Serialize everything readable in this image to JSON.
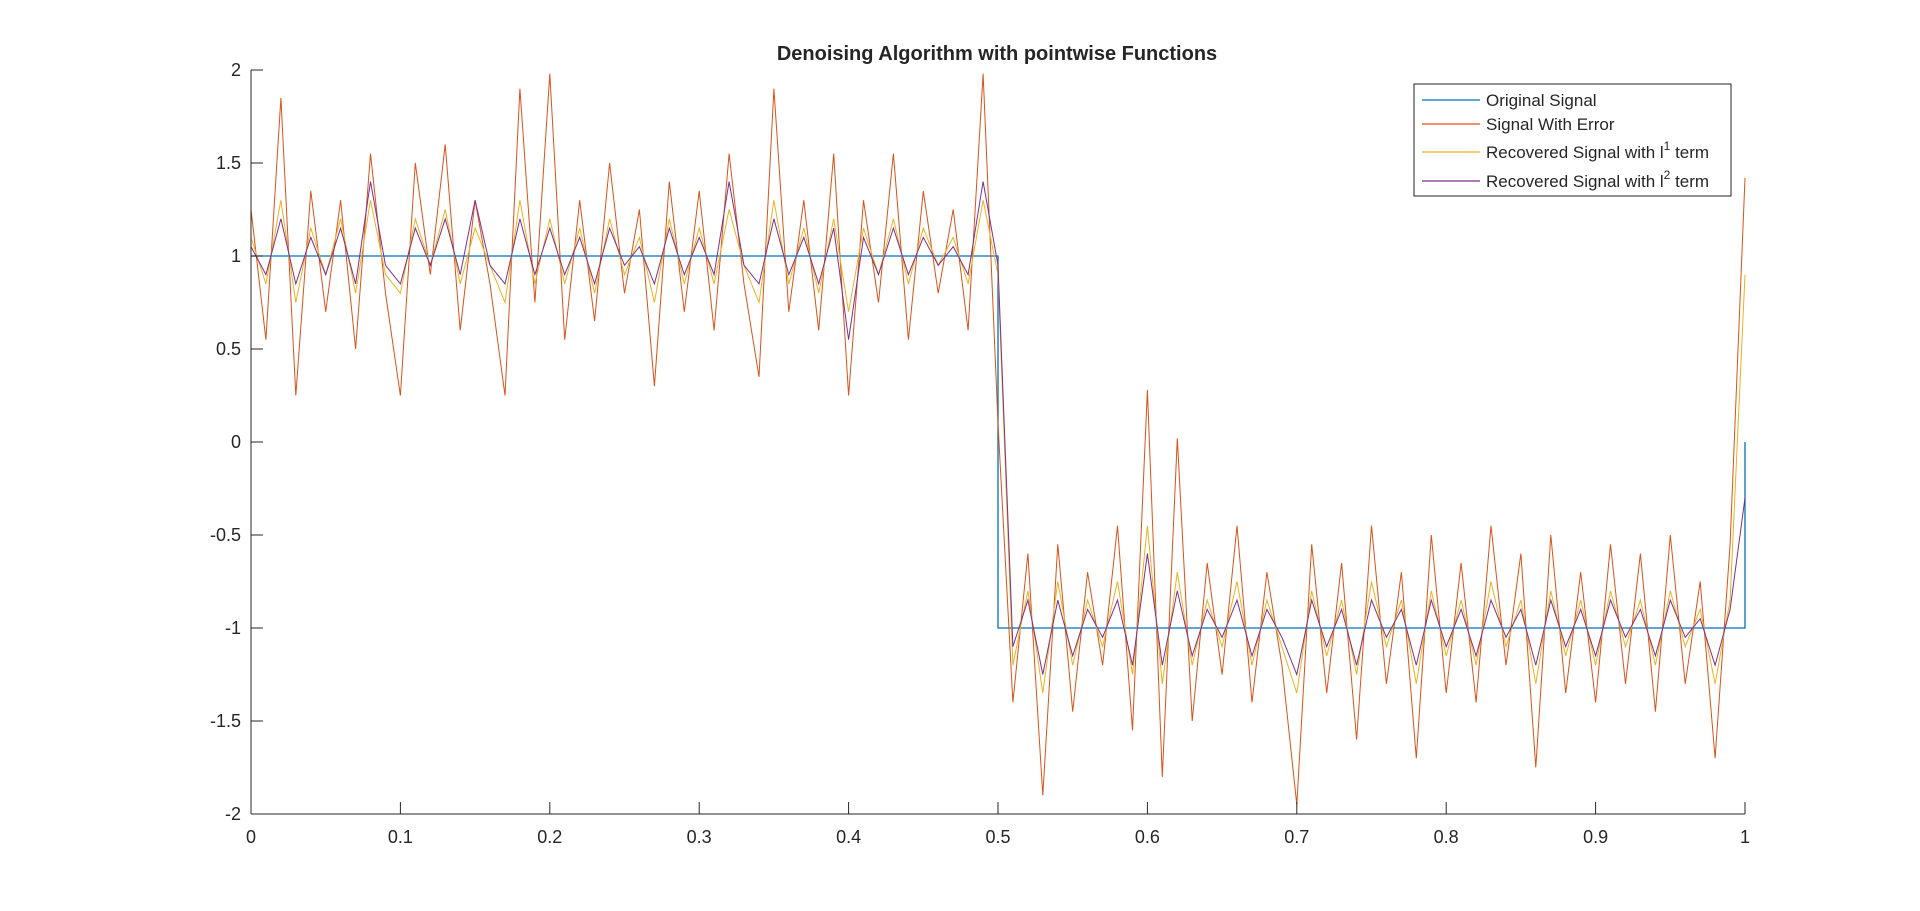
{
  "chart_data": {
    "type": "line",
    "title": "Denoising Algorithm with pointwise Functions",
    "xlabel": "",
    "ylabel": "",
    "xlim": [
      0,
      1
    ],
    "ylim": [
      -2,
      2
    ],
    "x_ticks": [
      0,
      0.1,
      0.2,
      0.3,
      0.4,
      0.5,
      0.6,
      0.7,
      0.8,
      0.9,
      1
    ],
    "x_tick_labels": [
      "0",
      "0.1",
      "0.2",
      "0.3",
      "0.4",
      "0.5",
      "0.6",
      "0.7",
      "0.8",
      "0.9",
      "1"
    ],
    "y_ticks": [
      2,
      1.5,
      1,
      0.5,
      0,
      -0.5,
      -1,
      -1.5,
      -2
    ],
    "y_tick_labels": [
      "2",
      "1.5",
      "1",
      "0.5",
      "0",
      "-0.5",
      "-1",
      "-1.5",
      "-2"
    ],
    "grid": false,
    "legend": {
      "placement": "top-right"
    },
    "series": [
      {
        "name": "Original Signal",
        "color": "#0072BD",
        "legend_parts": [
          "Original Signal"
        ],
        "x": [
          0,
          0.5,
          0.5,
          1,
          1
        ],
        "y": [
          1,
          1,
          -1,
          -1,
          0
        ]
      },
      {
        "name": "Signal With Error",
        "color": "#D95319",
        "legend_parts": [
          "Signal With Error"
        ],
        "x": [
          0,
          0.01,
          0.02,
          0.03,
          0.04,
          0.05,
          0.06,
          0.07,
          0.08,
          0.09,
          0.1,
          0.11,
          0.12,
          0.13,
          0.14,
          0.15,
          0.16,
          0.17,
          0.18,
          0.19,
          0.2,
          0.21,
          0.22,
          0.23,
          0.24,
          0.25,
          0.26,
          0.27,
          0.28,
          0.29,
          0.3,
          0.31,
          0.32,
          0.33,
          0.34,
          0.35,
          0.36,
          0.37,
          0.38,
          0.39,
          0.4,
          0.41,
          0.42,
          0.43,
          0.44,
          0.45,
          0.46,
          0.47,
          0.48,
          0.49,
          0.5,
          0.51,
          0.52,
          0.53,
          0.54,
          0.55,
          0.56,
          0.57,
          0.58,
          0.59,
          0.6,
          0.61,
          0.62,
          0.63,
          0.64,
          0.65,
          0.66,
          0.67,
          0.68,
          0.69,
          0.7,
          0.71,
          0.72,
          0.73,
          0.74,
          0.75,
          0.76,
          0.77,
          0.78,
          0.79,
          0.8,
          0.81,
          0.82,
          0.83,
          0.84,
          0.85,
          0.86,
          0.87,
          0.88,
          0.89,
          0.9,
          0.91,
          0.92,
          0.93,
          0.94,
          0.95,
          0.96,
          0.97,
          0.98,
          0.99,
          1
        ],
        "y": [
          1.25,
          0.55,
          1.85,
          0.25,
          1.35,
          0.7,
          1.3,
          0.5,
          1.55,
          0.8,
          0.25,
          1.5,
          0.9,
          1.6,
          0.6,
          1.3,
          0.85,
          0.25,
          1.9,
          0.75,
          1.98,
          0.55,
          1.3,
          0.65,
          1.5,
          0.8,
          1.25,
          0.3,
          1.4,
          0.7,
          1.35,
          0.6,
          1.55,
          0.85,
          0.35,
          1.9,
          0.7,
          1.3,
          0.6,
          1.55,
          0.25,
          1.3,
          0.75,
          1.55,
          0.55,
          1.35,
          0.8,
          1.25,
          0.6,
          1.98,
          0.1,
          -1.4,
          -0.6,
          -1.9,
          -0.55,
          -1.45,
          -0.7,
          -1.2,
          -0.45,
          -1.55,
          0.28,
          -1.8,
          0.02,
          -1.5,
          -0.65,
          -1.25,
          -0.45,
          -1.4,
          -0.7,
          -1.2,
          -1.95,
          -0.55,
          -1.35,
          -0.65,
          -1.6,
          -0.45,
          -1.3,
          -0.7,
          -1.7,
          -0.5,
          -1.35,
          -0.65,
          -1.4,
          -0.45,
          -1.2,
          -0.6,
          -1.75,
          -0.5,
          -1.35,
          -0.7,
          -1.4,
          -0.55,
          -1.3,
          -0.6,
          -1.45,
          -0.5,
          -1.3,
          -0.75,
          -1.7,
          -0.55,
          1.42
        ]
      },
      {
        "name": "Recovered Signal with l1 term",
        "color": "#EDB120",
        "legend_parts": [
          "Recovered Signal with l",
          "1",
          " term"
        ],
        "x": [
          0,
          0.01,
          0.02,
          0.03,
          0.04,
          0.05,
          0.06,
          0.07,
          0.08,
          0.09,
          0.1,
          0.11,
          0.12,
          0.13,
          0.14,
          0.15,
          0.16,
          0.17,
          0.18,
          0.19,
          0.2,
          0.21,
          0.22,
          0.23,
          0.24,
          0.25,
          0.26,
          0.27,
          0.28,
          0.29,
          0.3,
          0.31,
          0.32,
          0.33,
          0.34,
          0.35,
          0.36,
          0.37,
          0.38,
          0.39,
          0.4,
          0.41,
          0.42,
          0.43,
          0.44,
          0.45,
          0.46,
          0.47,
          0.48,
          0.49,
          0.5,
          0.51,
          0.52,
          0.53,
          0.54,
          0.55,
          0.56,
          0.57,
          0.58,
          0.59,
          0.6,
          0.61,
          0.62,
          0.63,
          0.64,
          0.65,
          0.66,
          0.67,
          0.68,
          0.69,
          0.7,
          0.71,
          0.72,
          0.73,
          0.74,
          0.75,
          0.76,
          0.77,
          0.78,
          0.79,
          0.8,
          0.81,
          0.82,
          0.83,
          0.84,
          0.85,
          0.86,
          0.87,
          0.88,
          0.89,
          0.9,
          0.91,
          0.92,
          0.93,
          0.94,
          0.95,
          0.96,
          0.97,
          0.98,
          0.99,
          1
        ],
        "y": [
          1.1,
          0.85,
          1.3,
          0.75,
          1.15,
          0.9,
          1.2,
          0.8,
          1.3,
          0.9,
          0.8,
          1.2,
          0.95,
          1.25,
          0.85,
          1.15,
          0.95,
          0.75,
          1.3,
          0.85,
          1.2,
          0.85,
          1.15,
          0.8,
          1.2,
          0.9,
          1.1,
          0.75,
          1.2,
          0.85,
          1.15,
          0.85,
          1.25,
          0.95,
          0.75,
          1.3,
          0.85,
          1.15,
          0.8,
          1.2,
          0.7,
          1.15,
          0.9,
          1.2,
          0.85,
          1.15,
          0.95,
          1.1,
          0.85,
          1.3,
          0.9,
          -1.2,
          -0.8,
          -1.35,
          -0.75,
          -1.2,
          -0.85,
          -1.1,
          -0.75,
          -1.25,
          -0.45,
          -1.3,
          -0.7,
          -1.2,
          -0.85,
          -1.1,
          -0.75,
          -1.2,
          -0.85,
          -1.1,
          -1.35,
          -0.8,
          -1.15,
          -0.85,
          -1.25,
          -0.75,
          -1.1,
          -0.85,
          -1.3,
          -0.8,
          -1.15,
          -0.85,
          -1.2,
          -0.75,
          -1.1,
          -0.85,
          -1.3,
          -0.8,
          -1.15,
          -0.85,
          -1.2,
          -0.8,
          -1.1,
          -0.85,
          -1.2,
          -0.8,
          -1.1,
          -0.9,
          -1.3,
          -0.85,
          0.9
        ]
      },
      {
        "name": "Recovered Signal with l2 term",
        "color": "#7E2F8E",
        "legend_parts": [
          "Recovered Signal with l",
          "2",
          " term"
        ],
        "x": [
          0,
          0.01,
          0.02,
          0.03,
          0.04,
          0.05,
          0.06,
          0.07,
          0.08,
          0.09,
          0.1,
          0.11,
          0.12,
          0.13,
          0.14,
          0.15,
          0.16,
          0.17,
          0.18,
          0.19,
          0.2,
          0.21,
          0.22,
          0.23,
          0.24,
          0.25,
          0.26,
          0.27,
          0.28,
          0.29,
          0.3,
          0.31,
          0.32,
          0.33,
          0.34,
          0.35,
          0.36,
          0.37,
          0.38,
          0.39,
          0.4,
          0.41,
          0.42,
          0.43,
          0.44,
          0.45,
          0.46,
          0.47,
          0.48,
          0.49,
          0.5,
          0.51,
          0.52,
          0.53,
          0.54,
          0.55,
          0.56,
          0.57,
          0.58,
          0.59,
          0.6,
          0.61,
          0.62,
          0.63,
          0.64,
          0.65,
          0.66,
          0.67,
          0.68,
          0.69,
          0.7,
          0.71,
          0.72,
          0.73,
          0.74,
          0.75,
          0.76,
          0.77,
          0.78,
          0.79,
          0.8,
          0.81,
          0.82,
          0.83,
          0.84,
          0.85,
          0.86,
          0.87,
          0.88,
          0.89,
          0.9,
          0.91,
          0.92,
          0.93,
          0.94,
          0.95,
          0.96,
          0.97,
          0.98,
          0.99,
          1
        ],
        "y": [
          1.05,
          0.9,
          1.2,
          0.85,
          1.1,
          0.9,
          1.15,
          0.85,
          1.4,
          0.95,
          0.85,
          1.15,
          0.95,
          1.2,
          0.9,
          1.3,
          0.95,
          0.85,
          1.2,
          0.9,
          1.15,
          0.9,
          1.1,
          0.85,
          1.15,
          0.95,
          1.05,
          0.85,
          1.15,
          0.9,
          1.1,
          0.9,
          1.4,
          0.95,
          0.85,
          1.2,
          0.9,
          1.1,
          0.85,
          1.15,
          0.55,
          1.1,
          0.9,
          1.15,
          0.9,
          1.1,
          0.95,
          1.05,
          0.9,
          1.4,
          0.95,
          -1.1,
          -0.85,
          -1.25,
          -0.85,
          -1.15,
          -0.9,
          -1.05,
          -0.85,
          -1.2,
          -0.6,
          -1.2,
          -0.8,
          -1.15,
          -0.9,
          -1.05,
          -0.85,
          -1.15,
          -0.9,
          -1.05,
          -1.25,
          -0.85,
          -1.1,
          -0.9,
          -1.2,
          -0.85,
          -1.05,
          -0.9,
          -1.2,
          -0.85,
          -1.1,
          -0.9,
          -1.15,
          -0.85,
          -1.05,
          -0.9,
          -1.2,
          -0.85,
          -1.1,
          -0.9,
          -1.15,
          -0.85,
          -1.05,
          -0.9,
          -1.15,
          -0.85,
          -1.05,
          -0.95,
          -1.2,
          -0.9,
          -0.3
        ]
      }
    ]
  }
}
